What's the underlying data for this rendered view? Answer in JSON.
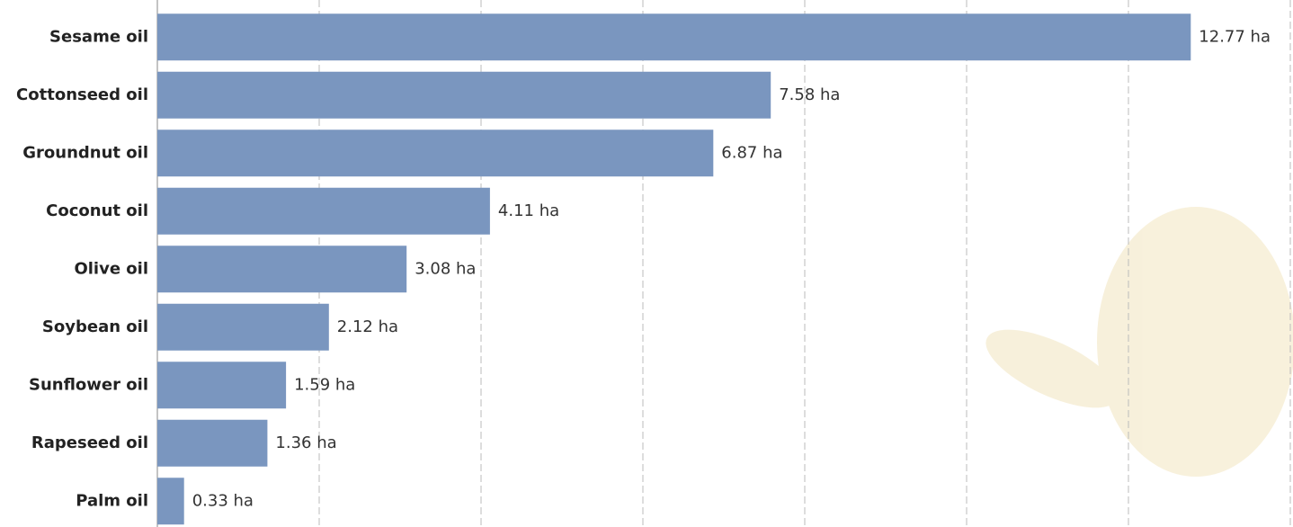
{
  "chart_data": {
    "type": "bar",
    "orientation": "horizontal",
    "categories": [
      "Sesame oil",
      "Cottonseed oil",
      "Groundnut oil",
      "Coconut oil",
      "Olive oil",
      "Soybean oil",
      "Sunflower oil",
      "Rapeseed oil",
      "Palm oil"
    ],
    "values": [
      12.77,
      7.58,
      6.87,
      4.11,
      3.08,
      2.12,
      1.59,
      1.36,
      0.33
    ],
    "value_labels": [
      "12.77 ha",
      "7.58 ha",
      "6.87 ha",
      "4.11 ha",
      "3.08 ha",
      "2.12 ha",
      "1.59 ha",
      "1.36 ha",
      "0.33 ha"
    ],
    "color": "#7a96bf",
    "xlim": [
      0,
      14
    ],
    "xticks": [
      0,
      2,
      4,
      6,
      8,
      10,
      12,
      14
    ],
    "grid": true
  }
}
